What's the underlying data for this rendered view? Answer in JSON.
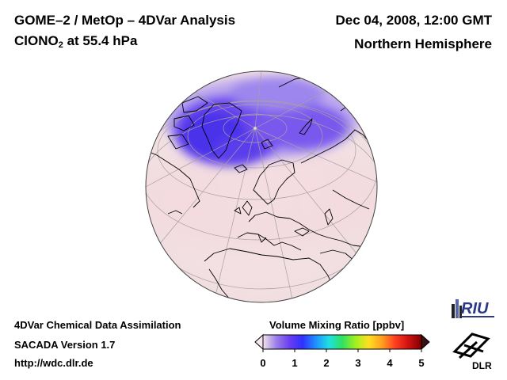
{
  "header": {
    "title": "GOME–2 / MetOp – 4DVar Analysis",
    "species_main": "ClONO",
    "species_sub": "2",
    "species_rest": " at 55.4 hPa",
    "date": "Dec 04, 2008, 12:00 GMT",
    "hemisphere": "Northern Hemisphere"
  },
  "footer": {
    "line1": "4DVar Chemical Data Assimilation",
    "line2": "SACADA Version 1.7",
    "line3": "http://wdc.dlr.de"
  },
  "colorbar": {
    "title": "Volume Mixing Ratio [ppbv]",
    "ticks": [
      "0",
      "1",
      "2",
      "3",
      "4",
      "5"
    ],
    "min": 0,
    "max": 5,
    "colors": [
      "#f4e4e8",
      "#9a80e8",
      "#6a3ef0",
      "#3030ff",
      "#2090ff",
      "#20e0e0",
      "#30e060",
      "#a0f020",
      "#ffe020",
      "#ffa020",
      "#ff4020",
      "#d01010",
      "#800000"
    ]
  },
  "logos": {
    "riu": "RIU",
    "dlr": "DLR"
  },
  "map": {
    "projection": "orthographic",
    "center": "Northern Hemisphere, tilted over Europe",
    "field": "ClONO2 volume mixing ratio",
    "max_region": "Arctic polar vortex edge (Greenland / Svalbard / northern Russia)",
    "max_value_ppbv": 1.0,
    "background_value_ppbv": 0.1
  }
}
